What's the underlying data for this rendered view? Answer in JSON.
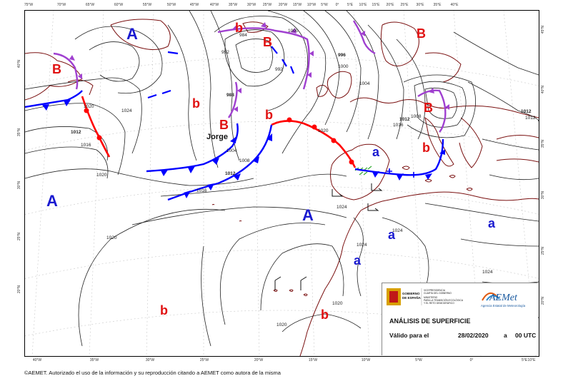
{
  "map": {
    "longitude_labels": [
      "75°W",
      "70°W",
      "65°W",
      "60°W",
      "55°W",
      "50°W",
      "45°W",
      "40°W",
      "35°W",
      "30°W",
      "25°W",
      "20°W",
      "15°W",
      "10°W",
      "5°W",
      "0°",
      "5°E",
      "10°E",
      "15°E",
      "20°E",
      "25°E",
      "30°E",
      "35°E",
      "40°E"
    ],
    "bottom_longitude_labels": [
      "40°W",
      "35°W",
      "30°W",
      "25°W",
      "20°W",
      "15°W",
      "10°W",
      "5°W",
      "0°",
      "5°E",
      "10°E"
    ],
    "latitude_labels_left": [
      "40°N",
      "35°N",
      "30°N",
      "25°N",
      "20°N"
    ],
    "latitude_labels_right": [
      "45°N",
      "40°N",
      "35°N",
      "30°N",
      "25°N",
      "20°N"
    ],
    "pressure_centers": [
      {
        "type": "high",
        "symbol": "A"
      },
      {
        "type": "high",
        "symbol": "A"
      },
      {
        "type": "high",
        "symbol": "A"
      },
      {
        "type": "low",
        "symbol": "B"
      },
      {
        "type": "low",
        "symbol": "B"
      },
      {
        "type": "low",
        "symbol": "B"
      },
      {
        "type": "low",
        "symbol": "B"
      },
      {
        "type": "low",
        "symbol": "B"
      },
      {
        "type": "secondary_low",
        "symbol": "b"
      },
      {
        "type": "secondary_low",
        "symbol": "b"
      },
      {
        "type": "secondary_low",
        "symbol": "b"
      },
      {
        "type": "secondary_low",
        "symbol": "b"
      },
      {
        "type": "secondary_low",
        "symbol": "b"
      },
      {
        "type": "secondary_low",
        "symbol": "b"
      },
      {
        "type": "secondary_high",
        "symbol": "a"
      },
      {
        "type": "secondary_high",
        "symbol": "a"
      },
      {
        "type": "secondary_high",
        "symbol": "a"
      },
      {
        "type": "secondary_high",
        "symbol": "a"
      }
    ],
    "storm_name": "Jorge",
    "isobar_labels": [
      "1020",
      "1024",
      "1012",
      "1016",
      "1020",
      "1012",
      "1016",
      "1008",
      "1004",
      "988",
      "992",
      "984",
      "1000",
      "992",
      "996",
      "1000",
      "1004",
      "1012",
      "1016",
      "1020",
      "1024",
      "1024",
      "1024",
      "1012",
      "1008",
      "1012",
      "1020",
      "1020",
      "1020",
      "1024"
    ],
    "colors": {
      "cold_front": "#0000ff",
      "warm_front": "#ff0000",
      "occluded_front": "#a040d0",
      "isobar": "#222222",
      "coastline": "#7a1010",
      "high_label": "#1a1ad0",
      "low_label": "#e01010",
      "precip": "#33aa33"
    }
  },
  "info": {
    "gov_line1": "VICEPRESIDENCIA",
    "gov_line2": "CUARTA DEL GOBIERNO",
    "gov_line3": "MINISTERIO",
    "gov_line4": "PARA LA TRANSICIÓN ECOLÓGICA",
    "gov_line5": "Y EL RETO DEMOGRÁFICO",
    "gov_name1": "GOBIERNO",
    "gov_name2": "DE ESPAÑA",
    "aemet_logo": "AEMet",
    "aemet_sub": "Agencia Estatal de Meteorología",
    "title": "ANÁLISIS DE SUPERFICIE",
    "valid_label": "Válido para el",
    "date": "28/02/2020",
    "at": "a",
    "time": "00 UTC"
  },
  "footer": {
    "copyright": "©AEMET. Autorizado el uso de la información y su reproducción citando a AEMET como autora de la misma"
  }
}
